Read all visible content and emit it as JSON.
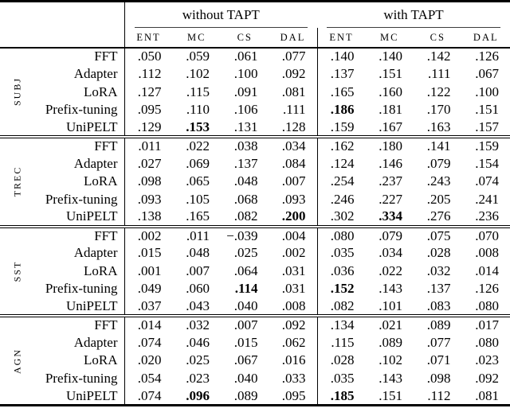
{
  "colors": {
    "background": "#ffffff",
    "text": "#000000",
    "rule": "#000000"
  },
  "table": {
    "group_headers": [
      {
        "label": "without TAPT"
      },
      {
        "label": "with TAPT"
      }
    ],
    "column_headers": [
      "ENT",
      "MC",
      "CS",
      "DAL",
      "ENT",
      "MC",
      "CS",
      "DAL"
    ],
    "row_groups": [
      {
        "label": "SUBJ",
        "rows": [
          {
            "label": "FFT",
            "values": [
              ".050",
              ".059",
              ".061",
              ".077",
              ".140",
              ".140",
              ".142",
              ".126"
            ],
            "bold": []
          },
          {
            "label": "Adapter",
            "values": [
              ".112",
              ".102",
              ".100",
              ".092",
              ".137",
              ".151",
              ".111",
              ".067"
            ],
            "bold": []
          },
          {
            "label": "LoRA",
            "values": [
              ".127",
              ".115",
              ".091",
              ".081",
              ".165",
              ".160",
              ".122",
              ".100"
            ],
            "bold": []
          },
          {
            "label": "Prefix-tuning",
            "values": [
              ".095",
              ".110",
              ".106",
              ".111",
              ".186",
              ".181",
              ".170",
              ".151"
            ],
            "bold": [
              4
            ]
          },
          {
            "label": "UniPELT",
            "values": [
              ".129",
              ".153",
              ".131",
              ".128",
              ".159",
              ".167",
              ".163",
              ".157"
            ],
            "bold": [
              1
            ]
          }
        ]
      },
      {
        "label": "TREC",
        "rows": [
          {
            "label": "FFT",
            "values": [
              ".011",
              ".022",
              ".038",
              ".034",
              ".162",
              ".180",
              ".141",
              ".159"
            ],
            "bold": []
          },
          {
            "label": "Adapter",
            "values": [
              ".027",
              ".069",
              ".137",
              ".084",
              ".124",
              ".146",
              ".079",
              ".154"
            ],
            "bold": []
          },
          {
            "label": "LoRA",
            "values": [
              ".098",
              ".065",
              ".048",
              ".007",
              ".254",
              ".237",
              ".243",
              ".074"
            ],
            "bold": []
          },
          {
            "label": "Prefix-tuning",
            "values": [
              ".093",
              ".105",
              ".068",
              ".093",
              ".246",
              ".227",
              ".205",
              ".241"
            ],
            "bold": []
          },
          {
            "label": "UniPELT",
            "values": [
              ".138",
              ".165",
              ".082",
              ".200",
              ".302",
              ".334",
              ".276",
              ".236"
            ],
            "bold": [
              3,
              5
            ]
          }
        ]
      },
      {
        "label": "SST",
        "rows": [
          {
            "label": "FFT",
            "values": [
              ".002",
              ".011",
              "−.039",
              ".004",
              ".080",
              ".079",
              ".075",
              ".070"
            ],
            "bold": []
          },
          {
            "label": "Adapter",
            "values": [
              ".015",
              ".048",
              ".025",
              ".002",
              ".035",
              ".034",
              ".028",
              ".008"
            ],
            "bold": []
          },
          {
            "label": "LoRA",
            "values": [
              ".001",
              ".007",
              ".064",
              ".031",
              ".036",
              ".022",
              ".032",
              ".014"
            ],
            "bold": []
          },
          {
            "label": "Prefix-tuning",
            "values": [
              ".049",
              ".060",
              ".114",
              ".031",
              ".152",
              ".143",
              ".137",
              ".126"
            ],
            "bold": [
              2,
              4
            ]
          },
          {
            "label": "UniPELT",
            "values": [
              ".037",
              ".043",
              ".040",
              ".008",
              ".082",
              ".101",
              ".083",
              ".080"
            ],
            "bold": []
          }
        ]
      },
      {
        "label": "AGN",
        "rows": [
          {
            "label": "FFT",
            "values": [
              ".014",
              ".032",
              ".007",
              ".092",
              ".134",
              ".021",
              ".089",
              ".017"
            ],
            "bold": []
          },
          {
            "label": "Adapter",
            "values": [
              ".074",
              ".046",
              ".015",
              ".062",
              ".115",
              ".089",
              ".077",
              ".080"
            ],
            "bold": []
          },
          {
            "label": "LoRA",
            "values": [
              ".020",
              ".025",
              ".067",
              ".016",
              ".028",
              ".102",
              ".071",
              ".023"
            ],
            "bold": []
          },
          {
            "label": "Prefix-tuning",
            "values": [
              ".054",
              ".023",
              ".040",
              ".033",
              ".035",
              ".143",
              ".098",
              ".092"
            ],
            "bold": []
          },
          {
            "label": "UniPELT",
            "values": [
              ".074",
              ".096",
              ".089",
              ".095",
              ".185",
              ".151",
              ".112",
              ".081"
            ],
            "bold": [
              1,
              4
            ]
          }
        ]
      }
    ]
  }
}
